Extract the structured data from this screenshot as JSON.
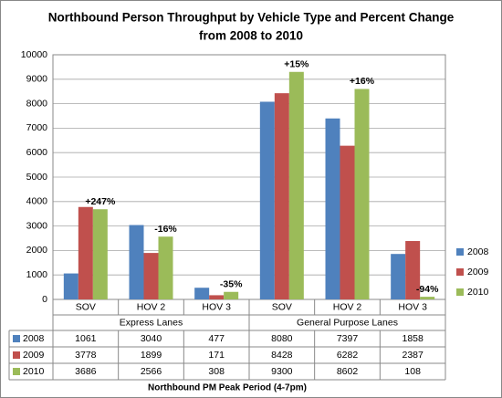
{
  "chart_data": {
    "type": "bar",
    "title": [
      "Northbound  Person Throughput  by Vehicle Type and Percent Change",
      "from 2008 to 2010"
    ],
    "categories": [
      "SOV",
      "HOV 2",
      "HOV 3",
      "SOV",
      "HOV 2",
      "HOV 3"
    ],
    "groups": [
      "Express Lanes",
      "General Purpose Lanes"
    ],
    "series": [
      {
        "name": "2008",
        "color": "#4f81bd",
        "values": [
          1061,
          3040,
          477,
          8080,
          7397,
          1858
        ]
      },
      {
        "name": "2009",
        "color": "#c0504d",
        "values": [
          3778,
          1899,
          171,
          8428,
          6282,
          2387
        ]
      },
      {
        "name": "2010",
        "color": "#9bbb59",
        "values": [
          3686,
          2566,
          308,
          9300,
          8602,
          108
        ]
      }
    ],
    "annotations": [
      "+247%",
      "-16%",
      "-35%",
      "+15%",
      "+16%",
      "-94%"
    ],
    "x_label": "Northbound PM Peak Period (4-7pm)",
    "ylim": [
      0,
      10000
    ],
    "yticks": [
      0,
      1000,
      2000,
      3000,
      4000,
      5000,
      6000,
      7000,
      8000,
      9000,
      10000
    ],
    "grid": true,
    "legend": "right"
  }
}
